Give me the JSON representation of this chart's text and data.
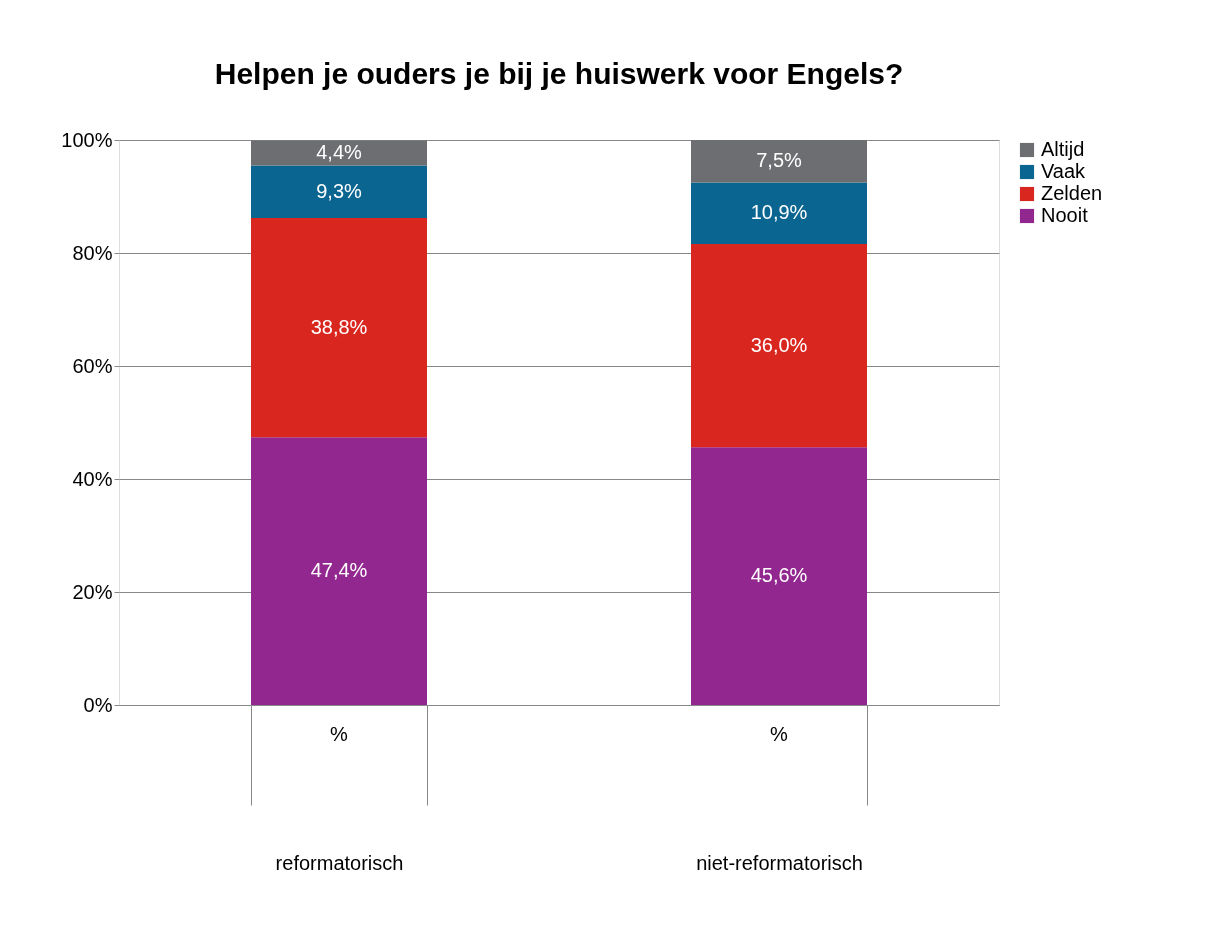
{
  "chart_data": {
    "type": "bar",
    "title": "Helpen je ouders je bij je huiswerk voor Engels?",
    "categories": [
      "reformatorisch",
      "niet-reformatorisch"
    ],
    "stacked": true,
    "series": [
      {
        "name": "Nooit",
        "color": "#92278f",
        "values": [
          47.4,
          45.6
        ],
        "value_labels": [
          "47,4%",
          "45,6%"
        ]
      },
      {
        "name": "Zelden",
        "color": "#d9261f",
        "values": [
          38.8,
          36.0
        ],
        "value_labels": [
          "38,8%",
          "36,0%"
        ]
      },
      {
        "name": "Vaak",
        "color": "#0a6591",
        "values": [
          9.3,
          10.9
        ],
        "value_labels": [
          "9,3%",
          "10,9%"
        ]
      },
      {
        "name": "Altijd",
        "color": "#6d6e71",
        "values": [
          4.4,
          7.5
        ],
        "value_labels": [
          "4,4%",
          "7,5%"
        ]
      }
    ],
    "ylim": [
      0,
      100
    ],
    "yticks": [
      {
        "value": 0,
        "label": "0%"
      },
      {
        "value": 20,
        "label": "20%"
      },
      {
        "value": 40,
        "label": "40%"
      },
      {
        "value": 60,
        "label": "60%"
      },
      {
        "value": 80,
        "label": "80%"
      },
      {
        "value": 100,
        "label": "100%"
      }
    ],
    "annotations": [
      "%",
      "%"
    ],
    "grid": "y",
    "legend": "right"
  }
}
